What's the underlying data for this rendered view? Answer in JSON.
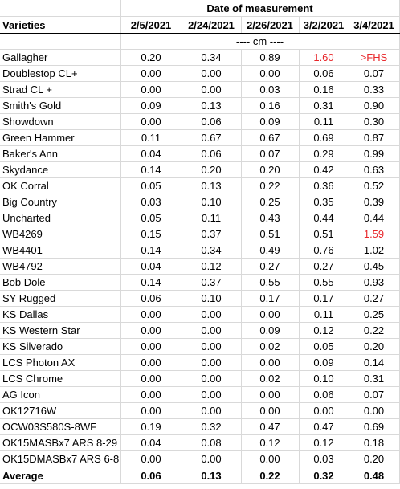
{
  "table": {
    "group_header": "Date of measurement",
    "varieties_label": "Varieties",
    "dates": [
      "2/5/2021",
      "2/24/2021",
      "2/26/2021",
      "3/2/2021",
      "3/4/2021"
    ],
    "unit": "---- cm ----",
    "rows": [
      {
        "name": "Gallagher",
        "values": [
          "0.20",
          "0.34",
          "0.89",
          "1.60",
          ">FHS"
        ],
        "red": [
          false,
          false,
          false,
          true,
          true
        ]
      },
      {
        "name": "Doublestop CL+",
        "values": [
          "0.00",
          "0.00",
          "0.00",
          "0.06",
          "0.07"
        ],
        "red": [
          false,
          false,
          false,
          false,
          false
        ]
      },
      {
        "name": "Strad CL +",
        "values": [
          "0.00",
          "0.00",
          "0.03",
          "0.16",
          "0.33"
        ],
        "red": [
          false,
          false,
          false,
          false,
          false
        ]
      },
      {
        "name": "Smith's Gold",
        "values": [
          "0.09",
          "0.13",
          "0.16",
          "0.31",
          "0.90"
        ],
        "red": [
          false,
          false,
          false,
          false,
          false
        ]
      },
      {
        "name": "Showdown",
        "values": [
          "0.00",
          "0.06",
          "0.09",
          "0.11",
          "0.30"
        ],
        "red": [
          false,
          false,
          false,
          false,
          false
        ]
      },
      {
        "name": "Green Hammer",
        "values": [
          "0.11",
          "0.67",
          "0.67",
          "0.69",
          "0.87"
        ],
        "red": [
          false,
          false,
          false,
          false,
          false
        ]
      },
      {
        "name": "Baker's Ann",
        "values": [
          "0.04",
          "0.06",
          "0.07",
          "0.29",
          "0.99"
        ],
        "red": [
          false,
          false,
          false,
          false,
          false
        ]
      },
      {
        "name": "Skydance",
        "values": [
          "0.14",
          "0.20",
          "0.20",
          "0.42",
          "0.63"
        ],
        "red": [
          false,
          false,
          false,
          false,
          false
        ]
      },
      {
        "name": "OK Corral",
        "values": [
          "0.05",
          "0.13",
          "0.22",
          "0.36",
          "0.52"
        ],
        "red": [
          false,
          false,
          false,
          false,
          false
        ]
      },
      {
        "name": "Big Country",
        "values": [
          "0.03",
          "0.10",
          "0.25",
          "0.35",
          "0.39"
        ],
        "red": [
          false,
          false,
          false,
          false,
          false
        ]
      },
      {
        "name": "Uncharted",
        "values": [
          "0.05",
          "0.11",
          "0.43",
          "0.44",
          "0.44"
        ],
        "red": [
          false,
          false,
          false,
          false,
          false
        ]
      },
      {
        "name": "WB4269",
        "values": [
          "0.15",
          "0.37",
          "0.51",
          "0.51",
          "1.59"
        ],
        "red": [
          false,
          false,
          false,
          false,
          true
        ]
      },
      {
        "name": "WB4401",
        "values": [
          "0.14",
          "0.34",
          "0.49",
          "0.76",
          "1.02"
        ],
        "red": [
          false,
          false,
          false,
          false,
          false
        ]
      },
      {
        "name": "WB4792",
        "values": [
          "0.04",
          "0.12",
          "0.27",
          "0.27",
          "0.45"
        ],
        "red": [
          false,
          false,
          false,
          false,
          false
        ]
      },
      {
        "name": "Bob Dole",
        "values": [
          "0.14",
          "0.37",
          "0.55",
          "0.55",
          "0.93"
        ],
        "red": [
          false,
          false,
          false,
          false,
          false
        ]
      },
      {
        "name": "SY Rugged",
        "values": [
          "0.06",
          "0.10",
          "0.17",
          "0.17",
          "0.27"
        ],
        "red": [
          false,
          false,
          false,
          false,
          false
        ]
      },
      {
        "name": "KS Dallas",
        "values": [
          "0.00",
          "0.00",
          "0.00",
          "0.11",
          "0.25"
        ],
        "red": [
          false,
          false,
          false,
          false,
          false
        ]
      },
      {
        "name": "KS Western Star",
        "values": [
          "0.00",
          "0.00",
          "0.09",
          "0.12",
          "0.22"
        ],
        "red": [
          false,
          false,
          false,
          false,
          false
        ]
      },
      {
        "name": "KS Silverado",
        "values": [
          "0.00",
          "0.00",
          "0.02",
          "0.05",
          "0.20"
        ],
        "red": [
          false,
          false,
          false,
          false,
          false
        ]
      },
      {
        "name": "LCS Photon AX",
        "values": [
          "0.00",
          "0.00",
          "0.00",
          "0.09",
          "0.14"
        ],
        "red": [
          false,
          false,
          false,
          false,
          false
        ]
      },
      {
        "name": "LCS Chrome",
        "values": [
          "0.00",
          "0.00",
          "0.02",
          "0.10",
          "0.31"
        ],
        "red": [
          false,
          false,
          false,
          false,
          false
        ]
      },
      {
        "name": "AG Icon",
        "values": [
          "0.00",
          "0.00",
          "0.00",
          "0.06",
          "0.07"
        ],
        "red": [
          false,
          false,
          false,
          false,
          false
        ]
      },
      {
        "name": "OK12716W",
        "values": [
          "0.00",
          "0.00",
          "0.00",
          "0.00",
          "0.00"
        ],
        "red": [
          false,
          false,
          false,
          false,
          false
        ]
      },
      {
        "name": "OCW03S580S-8WF",
        "values": [
          "0.19",
          "0.32",
          "0.47",
          "0.47",
          "0.69"
        ],
        "red": [
          false,
          false,
          false,
          false,
          false
        ]
      },
      {
        "name": "OK15MASBx7 ARS 8-29",
        "values": [
          "0.04",
          "0.08",
          "0.12",
          "0.12",
          "0.18"
        ],
        "red": [
          false,
          false,
          false,
          false,
          false
        ]
      },
      {
        "name": "OK15DMASBx7 ARS 6-8",
        "values": [
          "0.00",
          "0.00",
          "0.00",
          "0.03",
          "0.20"
        ],
        "red": [
          false,
          false,
          false,
          false,
          false
        ]
      }
    ],
    "average": {
      "label": "Average",
      "values": [
        "0.06",
        "0.13",
        "0.22",
        "0.32",
        "0.48"
      ]
    },
    "colors": {
      "highlight": "#e8262a",
      "grid": "#d9d9d9"
    }
  }
}
